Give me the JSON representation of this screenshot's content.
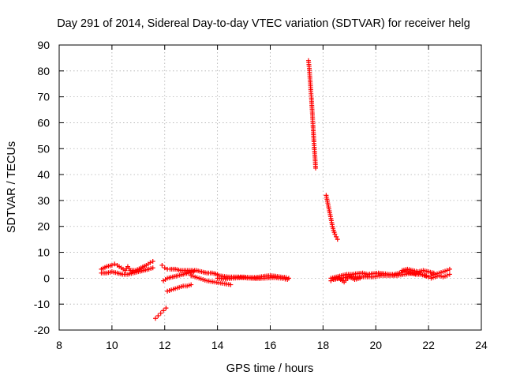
{
  "chart_data": {
    "type": "scatter",
    "title": "Day 291 of 2014, Sidereal Day-to-day VTEC variation (SDTVAR) for receiver helg",
    "xlabel": "GPS time / hours",
    "ylabel": "SDTVAR / TECUs",
    "xlim": [
      8,
      24
    ],
    "ylim": [
      -20,
      90
    ],
    "xticks": [
      8,
      10,
      12,
      14,
      16,
      18,
      20,
      22,
      24
    ],
    "yticks": [
      -20,
      -10,
      0,
      10,
      20,
      30,
      40,
      50,
      60,
      70,
      80,
      90
    ],
    "grid": true,
    "marker": "+",
    "color": "#ff0000",
    "series": [
      {
        "name": "SDTVAR",
        "segments": [
          {
            "x": [
              9.6,
              9.8,
              10.0,
              10.1,
              10.2,
              10.35,
              10.5,
              10.6,
              10.7,
              10.9,
              11.1,
              11.3,
              11.45,
              11.55
            ],
            "y": [
              3.5,
              4.5,
              5.0,
              5.5,
              5.0,
              4.0,
              3.0,
              4.5,
              3.0,
              3.0,
              4.0,
              5.0,
              6.0,
              6.5
            ]
          },
          {
            "x": [
              9.6,
              9.8,
              10.0,
              10.2,
              10.4,
              10.6,
              10.8,
              11.0,
              11.2,
              11.4,
              11.55
            ],
            "y": [
              2.0,
              2.0,
              2.5,
              2.0,
              1.5,
              1.5,
              2.0,
              2.5,
              3.0,
              3.5,
              4.0
            ]
          },
          {
            "x": [
              11.65,
              11.75,
              11.85,
              11.95,
              12.05
            ],
            "y": [
              -15.5,
              -14.5,
              -13.5,
              -12.5,
              -11.5
            ]
          },
          {
            "x": [
              11.9,
              12.0,
              12.1,
              12.2,
              12.4,
              12.6,
              12.8,
              13.0,
              13.2,
              13.4,
              13.6,
              13.8,
              14.0
            ],
            "y": [
              5.0,
              4.0,
              3.5,
              3.5,
              3.5,
              3.0,
              3.0,
              3.0,
              3.0,
              2.5,
              2.0,
              2.0,
              1.5
            ]
          },
          {
            "x": [
              11.95,
              12.1,
              12.3,
              12.5,
              12.7,
              12.9,
              13.1
            ],
            "y": [
              -1.0,
              0.0,
              0.5,
              1.0,
              1.5,
              2.0,
              2.5
            ]
          },
          {
            "x": [
              12.1,
              12.25,
              12.4,
              12.55,
              12.7,
              12.85,
              13.0
            ],
            "y": [
              -5.0,
              -4.5,
              -4.0,
              -3.5,
              -3.0,
              -3.0,
              -2.5
            ]
          },
          {
            "x": [
              13.0,
              13.3,
              13.6,
              13.9,
              14.2,
              14.5
            ],
            "y": [
              1.0,
              0.0,
              -1.0,
              -1.5,
              -2.0,
              -2.5
            ]
          },
          {
            "x": [
              14.0,
              14.2,
              14.4,
              14.6,
              14.8,
              15.0,
              15.2,
              15.4,
              15.6,
              15.8,
              16.0,
              16.2,
              16.4,
              16.6,
              16.7
            ],
            "y": [
              1.0,
              0.8,
              0.5,
              0.5,
              0.5,
              0.5,
              0.3,
              0.3,
              0.5,
              0.8,
              1.0,
              0.8,
              0.5,
              0.3,
              0.0
            ]
          },
          {
            "x": [
              14.0,
              14.3,
              14.6,
              14.9,
              15.2,
              15.5,
              15.8,
              16.1,
              16.4,
              16.65
            ],
            "y": [
              0.0,
              -0.3,
              0.0,
              0.2,
              0.0,
              -0.2,
              0.0,
              0.2,
              0.0,
              -0.5
            ]
          },
          {
            "x": [
              17.45,
              17.48,
              17.5,
              17.52,
              17.54,
              17.56,
              17.58,
              17.6,
              17.62,
              17.64,
              17.66,
              17.68,
              17.7,
              17.72
            ],
            "y": [
              84,
              81,
              78,
              75,
              72,
              69.5,
              66,
              63,
              59,
              55.5,
              52,
              49,
              46,
              42.5
            ]
          },
          {
            "x": [
              18.12,
              18.15,
              18.18,
              18.21,
              18.24,
              18.27,
              18.3,
              18.33,
              18.36,
              18.4,
              18.45,
              18.5,
              18.55
            ],
            "y": [
              32,
              30.5,
              29,
              27.5,
              26,
              24.5,
              23,
              21.5,
              20,
              18.5,
              17,
              16,
              15
            ]
          },
          {
            "x": [
              18.3,
              18.5,
              18.7,
              18.9,
              19.1,
              19.3,
              19.5,
              19.7,
              19.9,
              20.1,
              20.3,
              20.5,
              20.7,
              20.9,
              21.1,
              21.3,
              21.5,
              21.7,
              21.9
            ],
            "y": [
              0.0,
              0.5,
              1.0,
              1.5,
              1.5,
              1.8,
              2.0,
              1.5,
              1.8,
              2.0,
              1.8,
              1.5,
              1.5,
              2.0,
              2.5,
              2.0,
              1.5,
              1.5,
              1.0
            ]
          },
          {
            "x": [
              18.4,
              18.7,
              19.0,
              19.3,
              19.6,
              19.9,
              20.2,
              20.5,
              20.8,
              21.1,
              21.4,
              21.7,
              22.0
            ],
            "y": [
              -0.5,
              0.0,
              0.5,
              0.5,
              0.5,
              0.5,
              1.0,
              1.0,
              1.0,
              1.5,
              2.0,
              1.5,
              0.5
            ]
          },
          {
            "x": [
              18.3,
              18.4,
              18.6,
              18.8,
              19.0,
              19.2,
              19.4
            ],
            "y": [
              -1.0,
              -0.5,
              0.0,
              -1.5,
              0.5,
              -0.5,
              0.0
            ]
          },
          {
            "x": [
              21.0,
              21.2,
              21.4,
              21.6,
              21.8,
              22.0,
              22.2
            ],
            "y": [
              3.0,
              3.5,
              3.0,
              2.5,
              3.0,
              2.5,
              2.0
            ]
          },
          {
            "x": [
              22.1,
              22.25,
              22.4,
              22.55,
              22.7,
              22.8
            ],
            "y": [
              1.0,
              1.5,
              2.0,
              2.5,
              3.0,
              3.5
            ]
          },
          {
            "x": [
              22.1,
              22.25,
              22.4,
              22.55,
              22.7,
              22.8
            ],
            "y": [
              0.0,
              0.5,
              1.0,
              0.5,
              1.0,
              1.5
            ]
          }
        ]
      }
    ]
  }
}
